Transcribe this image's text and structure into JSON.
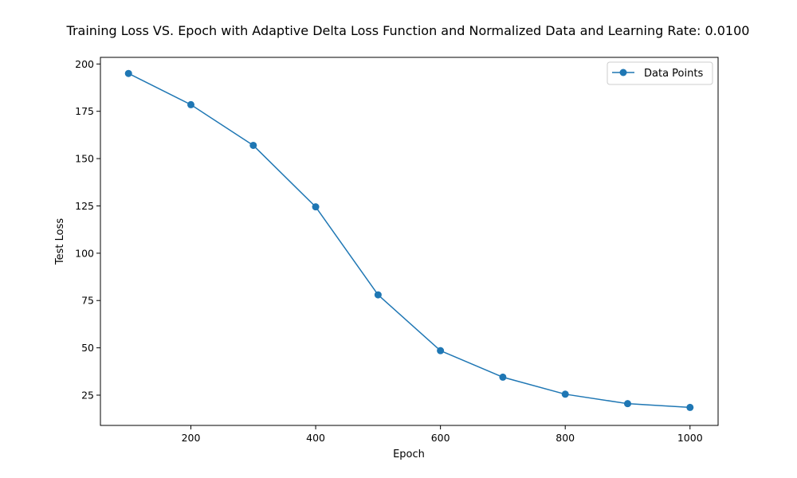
{
  "chart_data": {
    "type": "line",
    "title": "Training Loss VS. Epoch with Adaptive Delta Loss Function and Normalized Data and Learning Rate: 0.0100",
    "xlabel": "Epoch",
    "ylabel": "Test Loss",
    "xlim": [
      55,
      1045
    ],
    "ylim": [
      9,
      203.5
    ],
    "xticks": [
      200,
      400,
      600,
      800,
      1000
    ],
    "yticks": [
      25,
      50,
      75,
      100,
      125,
      150,
      175,
      200
    ],
    "grid": false,
    "legend_position": "top-right",
    "series": [
      {
        "name": "Data Points",
        "color": "#1f77b4",
        "marker": "circle",
        "x": [
          100,
          200,
          300,
          400,
          500,
          600,
          700,
          800,
          900,
          1000
        ],
        "y": [
          195,
          178.5,
          157,
          124.5,
          78,
          48.5,
          34.5,
          25.5,
          20.5,
          18.5
        ]
      }
    ]
  }
}
